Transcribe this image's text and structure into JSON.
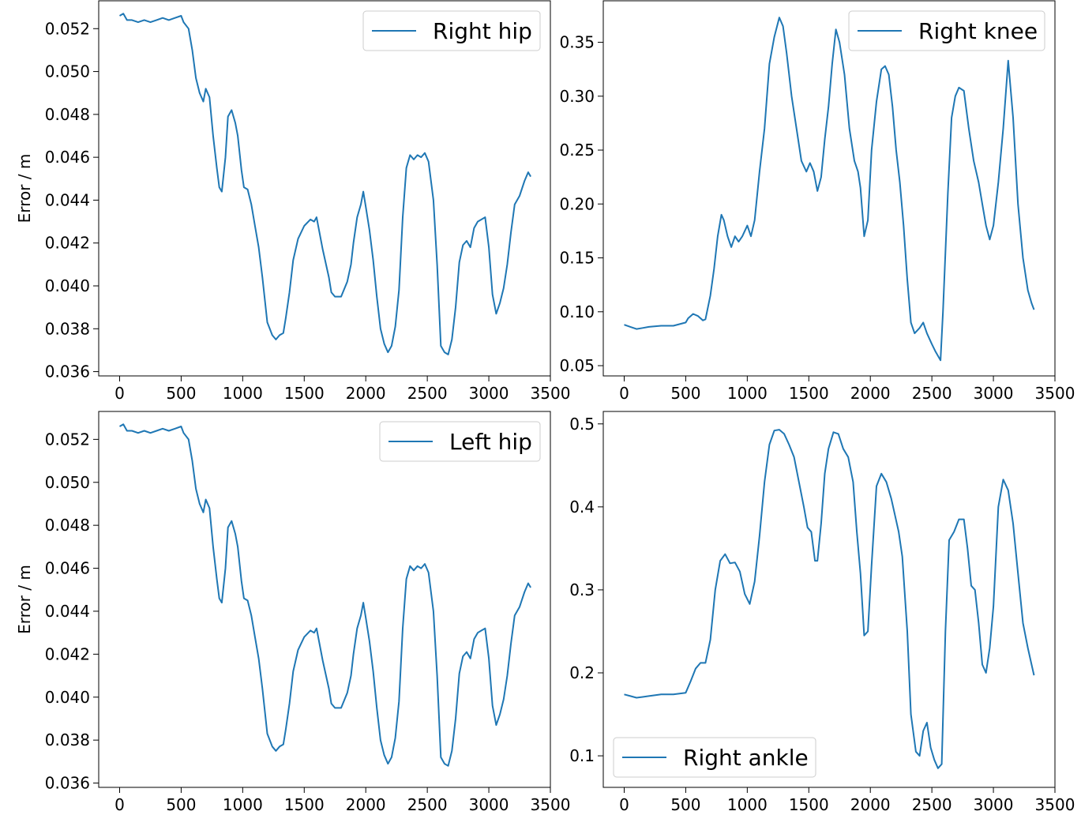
{
  "chart_data": [
    {
      "type": "line",
      "ylabel": "Error / m",
      "xlim": [
        -170,
        3500
      ],
      "ylim": [
        0.0358,
        0.0533
      ],
      "xticks": [
        0,
        500,
        1000,
        1500,
        2000,
        2500,
        3000,
        3500
      ],
      "yticks": [
        0.036,
        0.038,
        0.04,
        0.042,
        0.044,
        0.046,
        0.048,
        0.05,
        0.052
      ],
      "ytick_decimals": 3,
      "legend": "upper right",
      "color": "#1f77b4",
      "series": [
        {
          "name": "Right hip",
          "x": [
            0,
            30,
            60,
            100,
            150,
            200,
            250,
            300,
            350,
            400,
            450,
            500,
            520,
            560,
            590,
            620,
            650,
            680,
            700,
            730,
            760,
            790,
            810,
            830,
            860,
            880,
            910,
            940,
            960,
            990,
            1010,
            1040,
            1070,
            1100,
            1130,
            1160,
            1200,
            1240,
            1270,
            1300,
            1330,
            1350,
            1380,
            1410,
            1450,
            1500,
            1550,
            1580,
            1600,
            1650,
            1700,
            1720,
            1750,
            1800,
            1850,
            1880,
            1900,
            1930,
            1960,
            1980,
            2000,
            2030,
            2060,
            2090,
            2120,
            2150,
            2180,
            2210,
            2240,
            2270,
            2300,
            2330,
            2360,
            2390,
            2420,
            2450,
            2480,
            2510,
            2550,
            2580,
            2610,
            2640,
            2670,
            2700,
            2730,
            2760,
            2790,
            2820,
            2850,
            2880,
            2910,
            2940,
            2970,
            3000,
            3030,
            3060,
            3090,
            3120,
            3150,
            3180,
            3210,
            3250,
            3290,
            3320,
            3340
          ],
          "y": [
            0.0526,
            0.0527,
            0.0524,
            0.0524,
            0.0523,
            0.0524,
            0.0523,
            0.0524,
            0.0525,
            0.0524,
            0.0525,
            0.0526,
            0.0523,
            0.052,
            0.051,
            0.0497,
            0.049,
            0.0486,
            0.0492,
            0.0488,
            0.047,
            0.0455,
            0.0446,
            0.0444,
            0.046,
            0.0479,
            0.0482,
            0.0476,
            0.047,
            0.0454,
            0.0446,
            0.0445,
            0.0438,
            0.0428,
            0.0418,
            0.0404,
            0.0383,
            0.0377,
            0.0375,
            0.0377,
            0.0378,
            0.0385,
            0.0397,
            0.0412,
            0.0422,
            0.0428,
            0.0431,
            0.043,
            0.0432,
            0.0417,
            0.0404,
            0.0397,
            0.0395,
            0.0395,
            0.0402,
            0.041,
            0.042,
            0.0432,
            0.0438,
            0.0444,
            0.0437,
            0.0426,
            0.0412,
            0.0395,
            0.038,
            0.0373,
            0.0369,
            0.0372,
            0.0381,
            0.0398,
            0.0432,
            0.0455,
            0.0461,
            0.0459,
            0.0461,
            0.046,
            0.0462,
            0.0458,
            0.044,
            0.041,
            0.0372,
            0.0369,
            0.0368,
            0.0375,
            0.039,
            0.0411,
            0.0419,
            0.0421,
            0.0418,
            0.0427,
            0.043,
            0.0431,
            0.0432,
            0.0418,
            0.0396,
            0.0387,
            0.0392,
            0.0399,
            0.041,
            0.0425,
            0.0438,
            0.0442,
            0.0449,
            0.0453,
            0.0451
          ]
        }
      ]
    },
    {
      "type": "line",
      "ylabel": "",
      "xlim": [
        -170,
        3500
      ],
      "ylim": [
        0.0405,
        0.3885
      ],
      "xticks": [
        0,
        500,
        1000,
        1500,
        2000,
        2500,
        3000,
        3500
      ],
      "yticks": [
        0.05,
        0.1,
        0.15,
        0.2,
        0.25,
        0.3,
        0.35
      ],
      "ytick_decimals": 2,
      "legend": "upper right",
      "color": "#1f77b4",
      "series": [
        {
          "name": "Right knee",
          "x": [
            0,
            50,
            100,
            150,
            200,
            300,
            400,
            500,
            520,
            560,
            600,
            640,
            660,
            700,
            730,
            760,
            790,
            810,
            840,
            870,
            900,
            930,
            960,
            1000,
            1030,
            1060,
            1100,
            1140,
            1180,
            1220,
            1260,
            1290,
            1320,
            1360,
            1400,
            1440,
            1480,
            1510,
            1540,
            1570,
            1600,
            1630,
            1660,
            1690,
            1720,
            1750,
            1790,
            1830,
            1870,
            1900,
            1920,
            1950,
            1980,
            2010,
            2050,
            2090,
            2120,
            2150,
            2180,
            2210,
            2240,
            2270,
            2300,
            2330,
            2360,
            2400,
            2430,
            2460,
            2500,
            2530,
            2570,
            2590,
            2630,
            2660,
            2690,
            2720,
            2760,
            2800,
            2840,
            2880,
            2910,
            2940,
            2970,
            3000,
            3040,
            3080,
            3120,
            3160,
            3200,
            3240,
            3280,
            3310,
            3330
          ],
          "y": [
            0.088,
            0.086,
            0.084,
            0.085,
            0.086,
            0.087,
            0.087,
            0.09,
            0.094,
            0.098,
            0.096,
            0.092,
            0.093,
            0.115,
            0.14,
            0.17,
            0.19,
            0.185,
            0.17,
            0.16,
            0.17,
            0.165,
            0.17,
            0.18,
            0.17,
            0.185,
            0.23,
            0.27,
            0.33,
            0.355,
            0.373,
            0.365,
            0.34,
            0.3,
            0.27,
            0.24,
            0.23,
            0.238,
            0.23,
            0.212,
            0.225,
            0.26,
            0.29,
            0.33,
            0.362,
            0.35,
            0.32,
            0.27,
            0.24,
            0.23,
            0.215,
            0.17,
            0.185,
            0.25,
            0.295,
            0.325,
            0.328,
            0.32,
            0.29,
            0.25,
            0.22,
            0.18,
            0.13,
            0.09,
            0.08,
            0.085,
            0.09,
            0.08,
            0.07,
            0.063,
            0.055,
            0.1,
            0.21,
            0.28,
            0.3,
            0.308,
            0.305,
            0.27,
            0.24,
            0.22,
            0.2,
            0.18,
            0.167,
            0.18,
            0.22,
            0.27,
            0.333,
            0.28,
            0.2,
            0.15,
            0.12,
            0.108,
            0.102
          ]
        }
      ]
    },
    {
      "type": "line",
      "ylabel": "Error / m",
      "xlim": [
        -170,
        3500
      ],
      "ylim": [
        0.0358,
        0.0533
      ],
      "xticks": [
        0,
        500,
        1000,
        1500,
        2000,
        2500,
        3000,
        3500
      ],
      "yticks": [
        0.036,
        0.038,
        0.04,
        0.042,
        0.044,
        0.046,
        0.048,
        0.05,
        0.052
      ],
      "ytick_decimals": 3,
      "legend": "upper right",
      "color": "#1f77b4",
      "series": [
        {
          "name": "Left hip",
          "x": [
            0,
            30,
            60,
            100,
            150,
            200,
            250,
            300,
            350,
            400,
            450,
            500,
            520,
            560,
            590,
            620,
            650,
            680,
            700,
            730,
            760,
            790,
            810,
            830,
            860,
            880,
            910,
            940,
            960,
            990,
            1010,
            1040,
            1070,
            1100,
            1130,
            1160,
            1200,
            1240,
            1270,
            1300,
            1330,
            1350,
            1380,
            1410,
            1450,
            1500,
            1550,
            1580,
            1600,
            1650,
            1700,
            1720,
            1750,
            1800,
            1850,
            1880,
            1900,
            1930,
            1960,
            1980,
            2000,
            2030,
            2060,
            2090,
            2120,
            2150,
            2180,
            2210,
            2240,
            2270,
            2300,
            2330,
            2360,
            2390,
            2420,
            2450,
            2480,
            2510,
            2550,
            2580,
            2610,
            2640,
            2670,
            2700,
            2730,
            2760,
            2790,
            2820,
            2850,
            2880,
            2910,
            2940,
            2970,
            3000,
            3030,
            3060,
            3090,
            3120,
            3150,
            3180,
            3210,
            3250,
            3290,
            3320,
            3340
          ],
          "y": [
            0.0526,
            0.0527,
            0.0524,
            0.0524,
            0.0523,
            0.0524,
            0.0523,
            0.0524,
            0.0525,
            0.0524,
            0.0525,
            0.0526,
            0.0523,
            0.052,
            0.051,
            0.0497,
            0.049,
            0.0486,
            0.0492,
            0.0488,
            0.047,
            0.0455,
            0.0446,
            0.0444,
            0.046,
            0.0479,
            0.0482,
            0.0476,
            0.047,
            0.0454,
            0.0446,
            0.0445,
            0.0438,
            0.0428,
            0.0418,
            0.0404,
            0.0383,
            0.0377,
            0.0375,
            0.0377,
            0.0378,
            0.0385,
            0.0397,
            0.0412,
            0.0422,
            0.0428,
            0.0431,
            0.043,
            0.0432,
            0.0417,
            0.0404,
            0.0397,
            0.0395,
            0.0395,
            0.0402,
            0.041,
            0.042,
            0.0432,
            0.0438,
            0.0444,
            0.0437,
            0.0426,
            0.0412,
            0.0395,
            0.038,
            0.0373,
            0.0369,
            0.0372,
            0.0381,
            0.0398,
            0.0432,
            0.0455,
            0.0461,
            0.0459,
            0.0461,
            0.046,
            0.0462,
            0.0458,
            0.044,
            0.041,
            0.0372,
            0.0369,
            0.0368,
            0.0375,
            0.039,
            0.0411,
            0.0419,
            0.0421,
            0.0418,
            0.0427,
            0.043,
            0.0431,
            0.0432,
            0.0418,
            0.0396,
            0.0387,
            0.0392,
            0.0399,
            0.041,
            0.0425,
            0.0438,
            0.0442,
            0.0449,
            0.0453,
            0.0451
          ]
        }
      ]
    },
    {
      "type": "line",
      "ylabel": "",
      "xlim": [
        -170,
        3500
      ],
      "ylim": [
        0.062,
        0.515
      ],
      "xticks": [
        0,
        500,
        1000,
        1500,
        2000,
        2500,
        3000,
        3500
      ],
      "yticks": [
        0.1,
        0.2,
        0.3,
        0.4,
        0.5
      ],
      "ytick_decimals": 1,
      "legend": "lower left",
      "color": "#1f77b4",
      "series": [
        {
          "name": "Right ankle",
          "x": [
            0,
            50,
            100,
            150,
            200,
            300,
            400,
            500,
            540,
            580,
            620,
            660,
            700,
            740,
            780,
            820,
            860,
            900,
            940,
            980,
            1020,
            1060,
            1100,
            1140,
            1180,
            1220,
            1260,
            1300,
            1340,
            1380,
            1420,
            1460,
            1490,
            1520,
            1550,
            1570,
            1600,
            1630,
            1660,
            1700,
            1740,
            1780,
            1820,
            1860,
            1890,
            1920,
            1950,
            1980,
            2010,
            2050,
            2090,
            2130,
            2170,
            2200,
            2230,
            2260,
            2300,
            2330,
            2370,
            2400,
            2430,
            2460,
            2490,
            2520,
            2550,
            2580,
            2610,
            2640,
            2680,
            2720,
            2760,
            2790,
            2820,
            2850,
            2880,
            2910,
            2940,
            2970,
            3000,
            3040,
            3080,
            3120,
            3160,
            3200,
            3240,
            3280,
            3310,
            3330
          ],
          "y": [
            0.174,
            0.172,
            0.17,
            0.171,
            0.172,
            0.174,
            0.174,
            0.176,
            0.19,
            0.205,
            0.212,
            0.212,
            0.24,
            0.3,
            0.335,
            0.343,
            0.332,
            0.333,
            0.322,
            0.295,
            0.283,
            0.31,
            0.365,
            0.43,
            0.475,
            0.492,
            0.493,
            0.488,
            0.475,
            0.46,
            0.43,
            0.4,
            0.375,
            0.37,
            0.335,
            0.335,
            0.38,
            0.44,
            0.47,
            0.49,
            0.488,
            0.47,
            0.46,
            0.43,
            0.37,
            0.32,
            0.245,
            0.25,
            0.33,
            0.425,
            0.44,
            0.43,
            0.41,
            0.39,
            0.37,
            0.34,
            0.25,
            0.15,
            0.105,
            0.1,
            0.13,
            0.14,
            0.11,
            0.095,
            0.085,
            0.09,
            0.25,
            0.36,
            0.37,
            0.385,
            0.385,
            0.35,
            0.305,
            0.3,
            0.26,
            0.21,
            0.2,
            0.23,
            0.28,
            0.4,
            0.433,
            0.42,
            0.38,
            0.32,
            0.26,
            0.23,
            0.21,
            0.197
          ]
        }
      ]
    }
  ]
}
